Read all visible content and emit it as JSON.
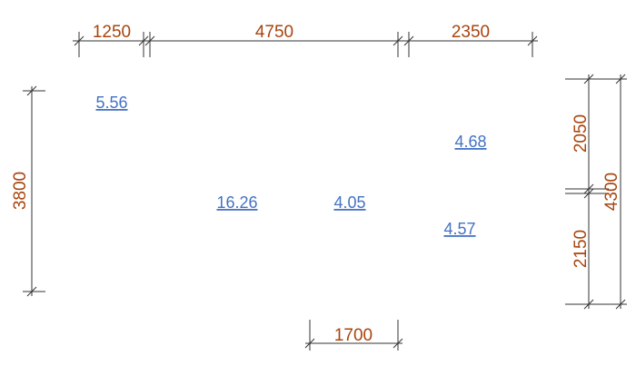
{
  "dimensions": {
    "top": [
      "1250",
      "4750",
      "2350"
    ],
    "left": "3800",
    "right": [
      "2050",
      "2150"
    ],
    "right_total": "4300",
    "bottom": "1700"
  },
  "areas": [
    "5.56",
    "4.68",
    "16.26",
    "4.05",
    "4.57"
  ]
}
